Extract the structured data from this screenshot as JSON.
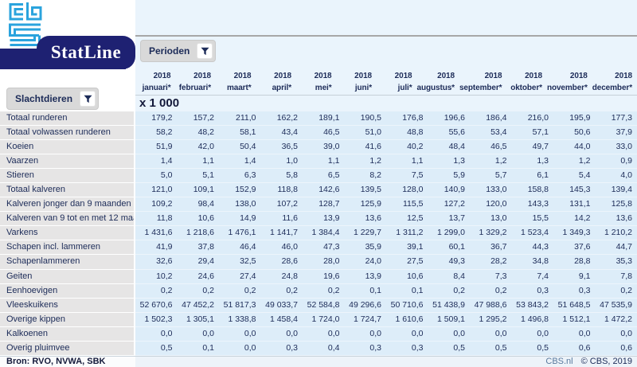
{
  "brand": {
    "statline_title": "StatLine",
    "logo_name": "CBS"
  },
  "filters": {
    "perioden_label": "Perioden",
    "slachtdieren_label": "Slachtdieren"
  },
  "table": {
    "unit": "x 1 000",
    "columns": [
      {
        "year": "2018",
        "month": "januari*"
      },
      {
        "year": "2018",
        "month": "februari*"
      },
      {
        "year": "2018",
        "month": "maart*"
      },
      {
        "year": "2018",
        "month": "april*"
      },
      {
        "year": "2018",
        "month": "mei*"
      },
      {
        "year": "2018",
        "month": "juni*"
      },
      {
        "year": "2018",
        "month": "juli*"
      },
      {
        "year": "2018",
        "month": "augustus*"
      },
      {
        "year": "2018",
        "month": "september*"
      },
      {
        "year": "2018",
        "month": "oktober*"
      },
      {
        "year": "2018",
        "month": "november*"
      },
      {
        "year": "2018",
        "month": "december*"
      }
    ],
    "rows": [
      {
        "label": "Totaal runderen",
        "values": [
          "179,2",
          "157,2",
          "211,0",
          "162,2",
          "189,1",
          "190,5",
          "176,8",
          "196,6",
          "186,4",
          "216,0",
          "195,9",
          "177,3"
        ]
      },
      {
        "label": "Totaal volwassen runderen",
        "values": [
          "58,2",
          "48,2",
          "58,1",
          "43,4",
          "46,5",
          "51,0",
          "48,8",
          "55,6",
          "53,4",
          "57,1",
          "50,6",
          "37,9"
        ]
      },
      {
        "label": "Koeien",
        "values": [
          "51,9",
          "42,0",
          "50,4",
          "36,5",
          "39,0",
          "41,6",
          "40,2",
          "48,4",
          "46,5",
          "49,7",
          "44,0",
          "33,0"
        ]
      },
      {
        "label": "Vaarzen",
        "values": [
          "1,4",
          "1,1",
          "1,4",
          "1,0",
          "1,1",
          "1,2",
          "1,1",
          "1,3",
          "1,2",
          "1,3",
          "1,2",
          "0,9"
        ]
      },
      {
        "label": "Stieren",
        "values": [
          "5,0",
          "5,1",
          "6,3",
          "5,8",
          "6,5",
          "8,2",
          "7,5",
          "5,9",
          "5,7",
          "6,1",
          "5,4",
          "4,0"
        ]
      },
      {
        "label": "Totaal kalveren",
        "values": [
          "121,0",
          "109,1",
          "152,9",
          "118,8",
          "142,6",
          "139,5",
          "128,0",
          "140,9",
          "133,0",
          "158,8",
          "145,3",
          "139,4"
        ]
      },
      {
        "label": "Kalveren jonger dan 9 maanden",
        "values": [
          "109,2",
          "98,4",
          "138,0",
          "107,2",
          "128,7",
          "125,9",
          "115,5",
          "127,2",
          "120,0",
          "143,3",
          "131,1",
          "125,8"
        ]
      },
      {
        "label": "Kalveren van 9 tot en met 12 maanden",
        "values": [
          "11,8",
          "10,6",
          "14,9",
          "11,6",
          "13,9",
          "13,6",
          "12,5",
          "13,7",
          "13,0",
          "15,5",
          "14,2",
          "13,6"
        ]
      },
      {
        "label": "Varkens",
        "values": [
          "1 431,6",
          "1 218,6",
          "1 476,1",
          "1 141,7",
          "1 384,4",
          "1 229,7",
          "1 311,2",
          "1 299,0",
          "1 329,2",
          "1 523,4",
          "1 349,3",
          "1 210,2"
        ]
      },
      {
        "label": "Schapen incl. lammeren",
        "values": [
          "41,9",
          "37,8",
          "46,4",
          "46,0",
          "47,3",
          "35,9",
          "39,1",
          "60,1",
          "36,7",
          "44,3",
          "37,6",
          "44,7"
        ]
      },
      {
        "label": "Schapenlammeren",
        "values": [
          "32,6",
          "29,4",
          "32,5",
          "28,6",
          "28,0",
          "24,0",
          "27,5",
          "49,3",
          "28,2",
          "34,8",
          "28,8",
          "35,3"
        ]
      },
      {
        "label": "Geiten",
        "values": [
          "10,2",
          "24,6",
          "27,4",
          "24,8",
          "19,6",
          "13,9",
          "10,6",
          "8,4",
          "7,3",
          "7,4",
          "9,1",
          "7,8"
        ]
      },
      {
        "label": "Eenhoevigen",
        "values": [
          "0,2",
          "0,2",
          "0,2",
          "0,2",
          "0,2",
          "0,1",
          "0,1",
          "0,2",
          "0,2",
          "0,3",
          "0,3",
          "0,2"
        ]
      },
      {
        "label": "Vleeskuikens",
        "values": [
          "52 670,6",
          "47 452,2",
          "51 817,3",
          "49 033,7",
          "52 584,8",
          "49 296,6",
          "50 710,6",
          "51 438,9",
          "47 988,6",
          "53 843,2",
          "51 648,5",
          "47 535,9"
        ]
      },
      {
        "label": "Overige kippen",
        "values": [
          "1 502,3",
          "1 305,1",
          "1 338,8",
          "1 458,4",
          "1 724,0",
          "1 724,7",
          "1 610,6",
          "1 509,1",
          "1 295,2",
          "1 496,8",
          "1 512,1",
          "1 472,2"
        ]
      },
      {
        "label": "Kalkoenen",
        "values": [
          "0,0",
          "0,0",
          "0,0",
          "0,0",
          "0,0",
          "0,0",
          "0,0",
          "0,0",
          "0,0",
          "0,0",
          "0,0",
          "0,0"
        ]
      },
      {
        "label": "Overig pluimvee",
        "values": [
          "0,5",
          "0,1",
          "0,0",
          "0,3",
          "0,4",
          "0,3",
          "0,3",
          "0,5",
          "0,5",
          "0,5",
          "0,6",
          "0,6"
        ]
      }
    ]
  },
  "footer": {
    "source": "Bron: RVO, NVWA, SBK",
    "site": "CBS.nl",
    "copyright": "© CBS, 2019"
  },
  "colors": {
    "navy": "#1e2172",
    "logo_blue": "#2aa3dd",
    "pane_bg": "#eaf4fc",
    "cell_bg": "#ddedf9",
    "label_bg": "#e6e5e5",
    "text": "#1c2b58"
  }
}
